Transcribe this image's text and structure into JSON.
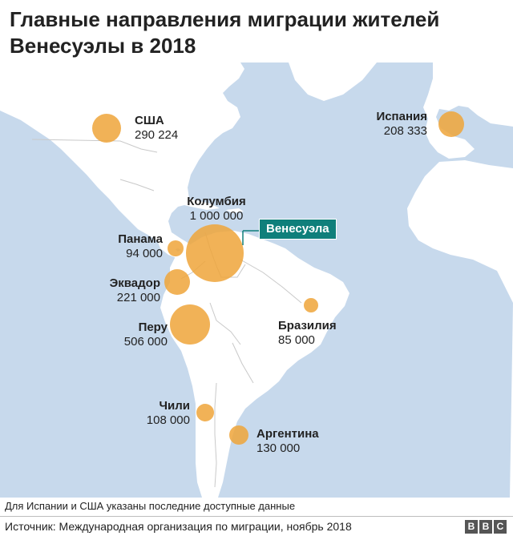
{
  "title": "Главные направления миграции жителей Венесуэлы в 2018",
  "colors": {
    "sea": "#c7d9ec",
    "land": "#ffffff",
    "bubble": "#efa43a",
    "venezuela": "#0f7f7b"
  },
  "highlight_country": "Венесуэла",
  "destinations": [
    {
      "name": "США",
      "value": "290 224"
    },
    {
      "name": "Испания",
      "value": "208 333"
    },
    {
      "name": "Колумбия",
      "value": "1 000 000"
    },
    {
      "name": "Панама",
      "value": "94 000"
    },
    {
      "name": "Эквадор",
      "value": "221 000"
    },
    {
      "name": "Перу",
      "value": "506 000"
    },
    {
      "name": "Бразилия",
      "value": "85 000"
    },
    {
      "name": "Чили",
      "value": "108 000"
    },
    {
      "name": "Аргентина",
      "value": "130 000"
    }
  ],
  "footnote": "Для Испании и США указаны последние доступные данные",
  "source": "Источник: Международная организация по миграции, ноябрь 2018",
  "logo": [
    "B",
    "B",
    "C"
  ]
}
